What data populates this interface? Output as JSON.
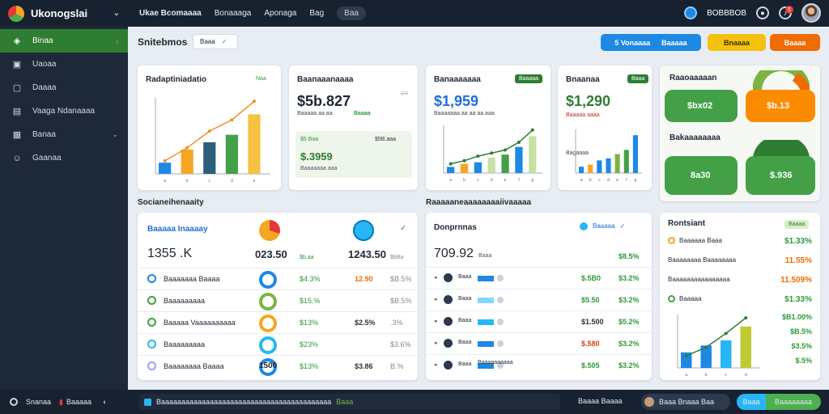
{
  "app": {
    "title": "Ukonogslai"
  },
  "topnav": {
    "items": [
      "Ukae Bcomaaaa",
      "Bonaaaga",
      "Aponaga",
      "Bag"
    ],
    "pill": "Baa"
  },
  "topright": {
    "label": "BOBBBOB",
    "badge": "5"
  },
  "sidebar": {
    "items": [
      {
        "label": "Binaa",
        "icon": "layers-icon",
        "active": true
      },
      {
        "label": "Uaoaa",
        "icon": "document-icon"
      },
      {
        "label": "Daaaa",
        "icon": "folder-icon"
      },
      {
        "label": "Vaaga Ndanaaaa",
        "icon": "chart-icon"
      },
      {
        "label": "Banaa",
        "icon": "table-icon",
        "chevron": true
      },
      {
        "label": "Gaanaa",
        "icon": "user-icon"
      }
    ]
  },
  "toolbar": {
    "title": "Snitebmos",
    "chip": "Baaa",
    "btn1": "5 Vonaaaa",
    "btn1b": "Baaaaa",
    "btn2": "Bnaaaa",
    "btn3": "Baaaa"
  },
  "section_labels": {
    "left": "Socianeihenaaity",
    "middle": "Raaaaaneaaaaaaaaiivaaaaa"
  },
  "cards": {
    "c1": {
      "title": "Radaptiniadatio",
      "chip": "Naa"
    },
    "c2": {
      "title": "Baanaaanaaaa",
      "value": "$5b.827",
      "sub": "Baaaaa aa aa",
      "tag": "Baaaa",
      "panel_value": "$.3959",
      "panel_tag": "$5 Baa",
      "panel_tag2": "$5B.aaa",
      "panel_sub": "Baaaaaaa aaa"
    },
    "c3": {
      "title": "Banaaaaaaa",
      "value": "$1,959",
      "chip": "Baaaaa",
      "sub": "Baaaaaaa aa aa aa aaa"
    },
    "c4": {
      "title": "Bnaanaa",
      "value": "$1,290",
      "chip": "Baaa",
      "sub1": "Baaaaa aaaa",
      "sub2": "Bagaaaa"
    },
    "c5": {
      "title": "Raaoaaaaan",
      "tile1": "$bx02",
      "tile2": "$b.13",
      "sub": "Bakaaaaaaaa",
      "tile3": "8a30",
      "tile4": "$.936"
    }
  },
  "summary": {
    "title": "Baaaaa Inaaaay",
    "value": "1355 .K",
    "val2": "023.50",
    "val3": "1243.50",
    "val2b": "$b.aa",
    "val3b": "$bBa",
    "rows": [
      {
        "label": "Baaaaaaa Baaaa",
        "c1": "$4.3%",
        "c2": "12.90",
        "c3": "$B.5%"
      },
      {
        "label": "Baaaaaaaaa",
        "c1": "$15.%",
        "c2": "",
        "c3": "$B.5%"
      },
      {
        "label": "Baaaaa Vaaaaaaaaaa",
        "c1": "$13%",
        "c2": "$2.5%",
        "c3": ".3%"
      },
      {
        "label": "Baaaaaaaaa",
        "c1": "$23%",
        "c2": "",
        "c3": "$3.6%"
      },
      {
        "label": "Baaaaaaaa Baaaa",
        "c1": "$13%",
        "c2": "$3.86",
        "c3": "B.%",
        "num": "1500"
      }
    ]
  },
  "table": {
    "title": "Donprnnas",
    "value": "709.92",
    "unit": "Baaa",
    "pct": "$8.5%",
    "chip": "Baaaaa",
    "rows": [
      {
        "label": "Baaa",
        "c1": "$.5B0",
        "c2": "$3.2%"
      },
      {
        "label": "Baaa",
        "c1": "$5.50",
        "c2": "$3.2%"
      },
      {
        "label": "Baaa",
        "c1": "$1.500",
        "c2": "$5.2%"
      },
      {
        "label": "Baaa",
        "c1": "$.580",
        "c2": "$3.2%"
      },
      {
        "label": "Baaa",
        "c1": "$.505",
        "c2": "$3.2%",
        "sub": "Baaaaaaaaaa"
      }
    ]
  },
  "right": {
    "title": "Rontsiant",
    "chip": "Baaaa",
    "rows": [
      {
        "label": "Baaaaaa Baaa",
        "val": "$1.33%"
      },
      {
        "label": "Baaaaaaaa Baaaaaaaa",
        "val": "11.55%"
      },
      {
        "label": "Baaaaaaaaaaaaaaaa",
        "val": "11.509%"
      },
      {
        "label": "Baaaaa",
        "val": "$1.33%"
      }
    ],
    "chart_vals": [
      "$B1.00%",
      "$B.5%",
      "$3.5%",
      "$.5%"
    ]
  },
  "bottombar": {
    "left": "Snanaa",
    "left2": "Baaaaa",
    "middle": "Baaaaaaaaaaaaaaaaaaaaaaaaaaaaaaaaaaaaaaaaaa",
    "middle2": "Baaa",
    "right1": "Baaaa Baaaa",
    "user": "Baaa Bnaaa Baa",
    "btn1": "Baaa",
    "btn2": "Baaaaaaaa"
  },
  "chart_data": [
    {
      "type": "bar",
      "categories": [
        "a",
        "b",
        "c",
        "d",
        "e"
      ],
      "values": [
        12,
        26,
        34,
        42,
        64
      ],
      "line": [
        14,
        28,
        46,
        58,
        78
      ]
    },
    {
      "type": "bar",
      "categories": [
        "a",
        "b",
        "c",
        "d",
        "e",
        "f",
        "g"
      ],
      "values": [
        8,
        12,
        14,
        20,
        24,
        34,
        48
      ],
      "line": [
        12,
        16,
        22,
        26,
        30,
        40,
        56
      ]
    },
    {
      "type": "bar",
      "categories": [
        "a",
        "b",
        "c",
        "d",
        "e",
        "f",
        "g"
      ],
      "values": [
        6,
        8,
        12,
        14,
        18,
        22,
        36
      ]
    },
    {
      "type": "bar",
      "categories": [
        "a",
        "b",
        "c",
        "d"
      ],
      "values": [
        18,
        26,
        32,
        48
      ],
      "line": [
        14,
        24,
        40,
        58
      ]
    }
  ]
}
